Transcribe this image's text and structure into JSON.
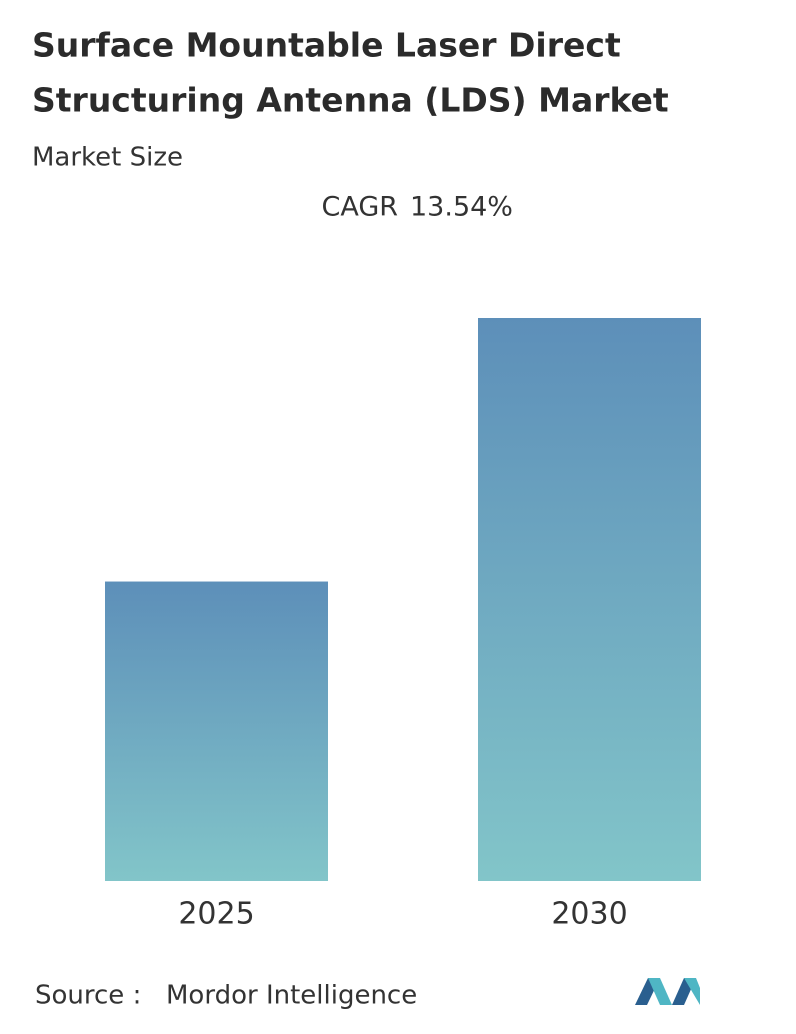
{
  "chart_data": {
    "type": "bar",
    "title": [
      "Surface Mountable Laser Direct",
      "Structuring Antenna (LDS) Market"
    ],
    "subtitle": "Market Size",
    "cagr": {
      "label": "CAGR",
      "value": "13.54%"
    },
    "categories": [
      "2025",
      "2030"
    ],
    "values": [
      1,
      1.88
    ],
    "colors": [
      "#5d8fb9",
      "#82c5c9"
    ],
    "source": {
      "label": "Source :",
      "name": "Mordor Intelligence"
    }
  }
}
